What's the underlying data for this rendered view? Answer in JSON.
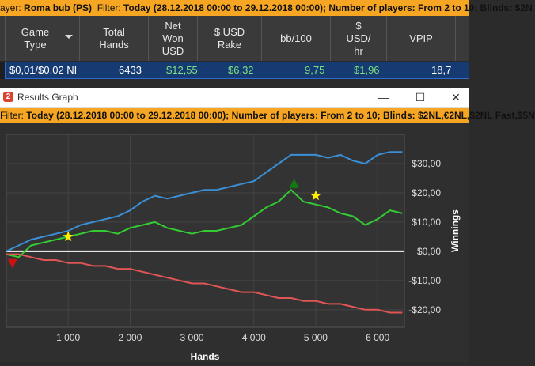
{
  "top_filter": {
    "player_prefix": "ayer:",
    "player": "Roma bub (PS)",
    "filter_label": "Filter:",
    "filter_text": "Today (28.12.2018 00:00 to 29.12.2018 00:00); Number of players: From 2 to 10; Blinds: $2N"
  },
  "table": {
    "columns": [
      {
        "label": "Game\nType"
      },
      {
        "label": "Total\nHands"
      },
      {
        "label": "Net\nWon\nUSD"
      },
      {
        "label": "$ USD\nRake"
      },
      {
        "label": "bb/100"
      },
      {
        "label": "$\nUSD/\nhr"
      },
      {
        "label": "VPIP"
      }
    ],
    "row": {
      "game_type": "$0,01/$0,02 NI",
      "total_hands": "6433",
      "net_won": "$12,55",
      "rake": "$6,32",
      "bb100": "9,75",
      "usd_hr": "$1,96",
      "vpip": "18,7"
    }
  },
  "window": {
    "title": "Results Graph",
    "minimize": "—",
    "maximize": "☐",
    "close": "✕"
  },
  "graph_filter": {
    "filter_label": "Filter:",
    "filter_text": "Today (28.12.2018 00:00 to 29.12.2018 00:00); Number of players: From 2 to 10; Blinds: $2NL,€2NL,$2NL Fast,$5N"
  },
  "chart_data": {
    "type": "line",
    "xlabel": "Hands",
    "ylabel": "Winnings",
    "xlim": [
      0,
      6433
    ],
    "ylim": [
      -26,
      40
    ],
    "x_ticks": [
      1000,
      2000,
      3000,
      4000,
      5000,
      6000
    ],
    "x_tick_labels": [
      "1 000",
      "2 000",
      "3 000",
      "4 000",
      "5 000",
      "6 000"
    ],
    "y_ticks": [
      -20,
      -10,
      0,
      10,
      20,
      30
    ],
    "y_tick_labels": [
      "-$20,00",
      "-$10,00",
      "$0,00",
      "$10,00",
      "$20,00",
      "$30,00"
    ],
    "grid": true,
    "zero_line": true,
    "series": [
      {
        "color": "#3a8fd6",
        "x": [
          0,
          200,
          400,
          600,
          800,
          1000,
          1200,
          1400,
          1600,
          1800,
          2000,
          2200,
          2400,
          2600,
          2800,
          3000,
          3200,
          3400,
          3600,
          3800,
          4000,
          4200,
          4400,
          4600,
          4800,
          5000,
          5200,
          5400,
          5600,
          5800,
          6000,
          6200,
          6400
        ],
        "y": [
          0,
          2,
          4,
          5,
          6,
          7,
          9,
          10,
          11,
          12,
          14,
          17,
          19,
          18,
          19,
          20,
          21,
          21,
          22,
          23,
          24,
          27,
          30,
          33,
          33,
          33,
          32,
          33,
          31,
          30,
          33,
          34,
          34
        ]
      },
      {
        "color": "#33cc33",
        "x": [
          0,
          200,
          400,
          600,
          800,
          1000,
          1200,
          1400,
          1600,
          1800,
          2000,
          2200,
          2400,
          2600,
          2800,
          3000,
          3200,
          3400,
          3600,
          3800,
          4000,
          4200,
          4400,
          4600,
          4800,
          5000,
          5200,
          5400,
          5600,
          5800,
          6000,
          6200,
          6400
        ],
        "y": [
          -1,
          -2,
          2,
          3,
          4,
          5,
          6,
          7,
          7,
          6,
          8,
          9,
          10,
          8,
          7,
          6,
          7,
          7,
          8,
          9,
          12,
          15,
          17,
          21,
          17,
          16,
          15,
          13,
          12,
          9,
          11,
          14,
          13
        ]
      },
      {
        "color": "#e05555",
        "x": [
          0,
          200,
          400,
          600,
          800,
          1000,
          1200,
          1400,
          1600,
          1800,
          2000,
          2200,
          2400,
          2600,
          2800,
          3000,
          3200,
          3400,
          3600,
          3800,
          4000,
          4200,
          4400,
          4600,
          4800,
          5000,
          5200,
          5400,
          5600,
          5800,
          6000,
          6200,
          6400
        ],
        "y": [
          -1,
          -1,
          -2,
          -3,
          -3,
          -4,
          -4,
          -5,
          -5,
          -6,
          -6,
          -7,
          -8,
          -9,
          -10,
          -11,
          -11,
          -12,
          -13,
          -14,
          -14,
          -15,
          -16,
          -16,
          -17,
          -17,
          -18,
          -18,
          -19,
          -20,
          -20,
          -21,
          -21
        ]
      }
    ],
    "markers": [
      {
        "type": "star",
        "color": "#ffee00",
        "x": 1000,
        "y": 5
      },
      {
        "type": "star",
        "color": "#ffee00",
        "x": 5000,
        "y": 19
      },
      {
        "type": "triangle-up",
        "color": "#117a11",
        "x": 4650,
        "y": 23
      },
      {
        "type": "triangle-down",
        "color": "#cc1111",
        "x": 100,
        "y": -4
      }
    ]
  }
}
